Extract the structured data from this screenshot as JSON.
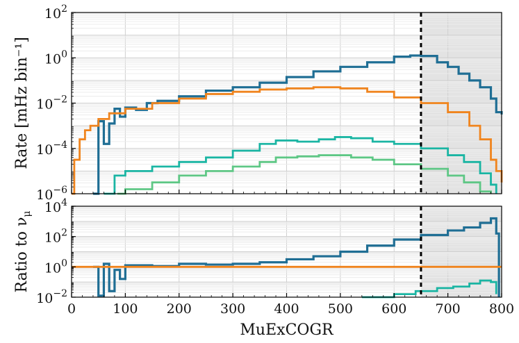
{
  "chart_data": [
    {
      "type": "line",
      "id": "rate",
      "ylabel": "Rate [mHz bin⁻¹]",
      "yscale": "log",
      "ylim_exp": [
        -6,
        2
      ],
      "xlim": [
        0,
        800
      ],
      "ytick_labels": [
        {
          "base": "10",
          "exp": "2"
        },
        {
          "base": "10",
          "exp": "0"
        },
        {
          "base": "10",
          "exp": "−2"
        },
        {
          "base": "10",
          "exp": "−4"
        },
        {
          "base": "10",
          "exp": "−6"
        }
      ],
      "cut_x": 650,
      "shade_range": [
        650,
        800
      ],
      "series": [
        {
          "name": "dark-blue",
          "color": "#1f6e94",
          "x": [
            40,
            50,
            60,
            70,
            80,
            90,
            100,
            120,
            140,
            160,
            200,
            250,
            300,
            350,
            400,
            450,
            500,
            550,
            600,
            630,
            650,
            680,
            700,
            720,
            740,
            760,
            780,
            790,
            800
          ],
          "y": [
            -6,
            -2.8,
            -3.8,
            -2.9,
            -2.25,
            -2.6,
            -2.2,
            -2.3,
            -2.0,
            -1.9,
            -1.7,
            -1.45,
            -1.3,
            -1.1,
            -0.85,
            -0.6,
            -0.4,
            -0.2,
            0.05,
            0.1,
            0.08,
            -0.2,
            -0.4,
            -0.7,
            -1.0,
            -1.3,
            -1.8,
            -2.4,
            -2.5
          ]
        },
        {
          "name": "orange",
          "color": "#f0841d",
          "x": [
            0,
            5,
            15,
            25,
            35,
            50,
            70,
            100,
            150,
            200,
            250,
            300,
            350,
            400,
            450,
            480,
            500,
            550,
            600,
            650,
            700,
            740,
            760,
            780,
            790,
            800
          ],
          "y": [
            -6,
            -4.5,
            -3.6,
            -3.2,
            -3.0,
            -2.7,
            -2.45,
            -2.25,
            -2.0,
            -1.8,
            -1.6,
            -1.5,
            -1.4,
            -1.35,
            -1.3,
            -1.3,
            -1.35,
            -1.5,
            -1.75,
            -2.0,
            -2.4,
            -3.0,
            -3.6,
            -4.5,
            -5.0,
            -5.5
          ]
        },
        {
          "name": "teal",
          "color": "#1ab5a3",
          "x": [
            60,
            80,
            100,
            150,
            200,
            250,
            300,
            350,
            380,
            420,
            460,
            490,
            520,
            560,
            600,
            650,
            700,
            730,
            760,
            780,
            790
          ],
          "y": [
            -6,
            -5.2,
            -5.0,
            -4.8,
            -4.6,
            -4.4,
            -4.1,
            -3.8,
            -3.65,
            -3.7,
            -3.6,
            -3.5,
            -3.55,
            -3.7,
            -3.8,
            -4.0,
            -4.3,
            -4.6,
            -5.1,
            -5.6,
            -6
          ]
        },
        {
          "name": "green",
          "color": "#5ec785",
          "x": [
            85,
            100,
            150,
            200,
            250,
            300,
            350,
            380,
            420,
            460,
            490,
            520,
            560,
            600,
            650,
            700,
            730,
            760,
            780
          ],
          "y": [
            -6,
            -5.8,
            -5.5,
            -5.2,
            -5.0,
            -4.8,
            -4.6,
            -4.4,
            -4.35,
            -4.3,
            -4.3,
            -4.4,
            -4.5,
            -4.7,
            -4.9,
            -5.2,
            -5.5,
            -5.9,
            -6
          ]
        }
      ]
    },
    {
      "type": "line",
      "id": "ratio",
      "ylabel": "Ratio to ν",
      "ylabel_sub": "μ",
      "yscale": "log",
      "ylim_exp": [
        -2,
        4
      ],
      "xlim": [
        0,
        800
      ],
      "xlabel": "MuExCOGR",
      "xticks": [
        0,
        100,
        200,
        300,
        400,
        500,
        600,
        700,
        800
      ],
      "xtick_labels": [
        "0",
        "100",
        "200",
        "300",
        "400",
        "500",
        "600",
        "700",
        "800"
      ],
      "ytick_labels": [
        {
          "base": "10",
          "exp": "4"
        },
        {
          "base": "10",
          "exp": "2"
        },
        {
          "base": "10",
          "exp": "0"
        },
        {
          "base": "10",
          "exp": "−2"
        }
      ],
      "cut_x": 650,
      "shade_range": [
        650,
        800
      ],
      "series": [
        {
          "name": "dark-blue",
          "color": "#1f6e94",
          "x": [
            40,
            50,
            60,
            70,
            80,
            90,
            100,
            150,
            200,
            250,
            300,
            350,
            400,
            450,
            500,
            550,
            600,
            650,
            700,
            730,
            760,
            780,
            790,
            795
          ],
          "y": [
            0,
            -1.9,
            0.2,
            -1.6,
            -0.2,
            -0.8,
            0.1,
            0.05,
            0.2,
            0.15,
            0.2,
            0.3,
            0.5,
            0.7,
            1.0,
            1.4,
            1.8,
            2.1,
            2.4,
            2.6,
            2.9,
            3.2,
            2.2,
            -2
          ]
        },
        {
          "name": "orange",
          "color": "#f0841d",
          "x": [
            0,
            800
          ],
          "y": [
            0,
            0
          ]
        },
        {
          "name": "teal",
          "color": "#1ab5a3",
          "x": [
            540,
            600,
            640,
            680,
            710,
            740,
            760,
            780,
            790
          ],
          "y": [
            -2,
            -1.8,
            -1.6,
            -1.4,
            -1.3,
            -1.1,
            -0.9,
            -1.0,
            -1.8
          ]
        }
      ]
    }
  ]
}
